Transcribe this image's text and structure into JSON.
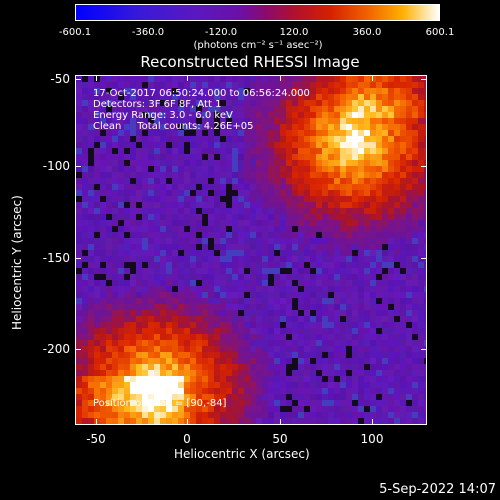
{
  "colorbar": {
    "ticks": [
      "-600.1",
      "-360.0",
      "-120.0",
      "120.0",
      "360.0",
      "600.1"
    ],
    "units": "(photons cm⁻² s⁻¹ asec⁻²)"
  },
  "title": "Reconstructed RHESSI Image",
  "info": {
    "line1": "17-Oct-2017 06:50:24.000 to 06:56:24.000",
    "line2": "Detectors: 3F 6F 8F, Att 1",
    "line3": "Energy Range: 3.0 - 6.0 keV",
    "line4": "Clean     Total counts: 4.26E+05",
    "peak": "Position of Peak = [90,-84]"
  },
  "x_axis": {
    "label": "Heliocentric X (arcsec)",
    "ticks": [
      "-50",
      "0",
      "50",
      "100"
    ]
  },
  "y_axis": {
    "label": "Heliocentric Y (arcsec)",
    "ticks": [
      "-50",
      "-100",
      "-150",
      "-200"
    ]
  },
  "footer": "5-Sep-2022 14:07",
  "image_colors": {
    "background_hi": "#6a16c0",
    "warm_low": "#c02000",
    "warm_mid": "#ff6a00",
    "peak": "#ffffff"
  }
}
